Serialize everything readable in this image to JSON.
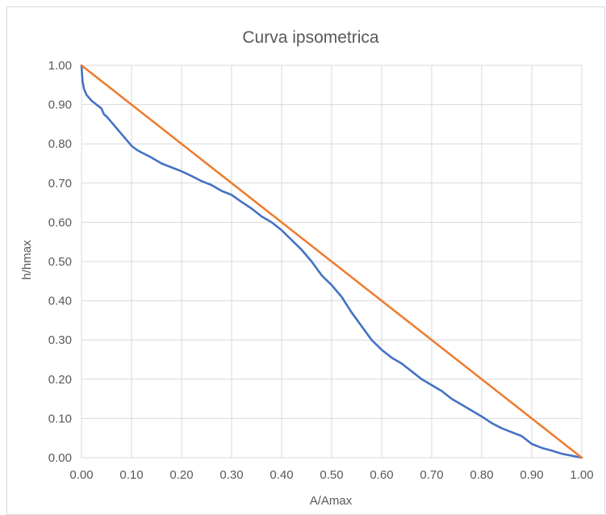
{
  "chart_data": {
    "type": "line",
    "title": "Curva ipsometrica",
    "xlabel": "A/Amax",
    "ylabel": "h/hmax",
    "xlim": [
      0,
      1
    ],
    "ylim": [
      0,
      1
    ],
    "x_ticks": [
      "0.00",
      "0.10",
      "0.20",
      "0.30",
      "0.40",
      "0.50",
      "0.60",
      "0.70",
      "0.80",
      "0.90",
      "1.00"
    ],
    "y_ticks": [
      "0.00",
      "0.10",
      "0.20",
      "0.30",
      "0.40",
      "0.50",
      "0.60",
      "0.70",
      "0.80",
      "0.90",
      "1.00"
    ],
    "grid": true,
    "legend": "none",
    "series": [
      {
        "color": "#4472c4",
        "x": [
          0.0,
          0.002,
          0.005,
          0.01,
          0.02,
          0.03,
          0.04,
          0.045,
          0.05,
          0.06,
          0.07,
          0.08,
          0.09,
          0.1,
          0.11,
          0.12,
          0.14,
          0.16,
          0.18,
          0.2,
          0.22,
          0.24,
          0.26,
          0.28,
          0.3,
          0.32,
          0.34,
          0.36,
          0.38,
          0.4,
          0.42,
          0.44,
          0.46,
          0.48,
          0.5,
          0.52,
          0.54,
          0.56,
          0.58,
          0.6,
          0.62,
          0.64,
          0.66,
          0.68,
          0.7,
          0.72,
          0.74,
          0.76,
          0.78,
          0.8,
          0.82,
          0.84,
          0.86,
          0.88,
          0.9,
          0.92,
          0.94,
          0.96,
          0.98,
          1.0
        ],
        "y": [
          1.0,
          0.96,
          0.94,
          0.925,
          0.91,
          0.9,
          0.89,
          0.875,
          0.87,
          0.855,
          0.84,
          0.825,
          0.81,
          0.795,
          0.785,
          0.778,
          0.765,
          0.75,
          0.74,
          0.73,
          0.718,
          0.705,
          0.695,
          0.68,
          0.67,
          0.652,
          0.635,
          0.615,
          0.6,
          0.58,
          0.555,
          0.53,
          0.5,
          0.465,
          0.44,
          0.41,
          0.37,
          0.335,
          0.3,
          0.275,
          0.255,
          0.24,
          0.22,
          0.2,
          0.185,
          0.17,
          0.15,
          0.135,
          0.12,
          0.105,
          0.088,
          0.075,
          0.065,
          0.055,
          0.035,
          0.025,
          0.018,
          0.01,
          0.005,
          0.0
        ]
      },
      {
        "color": "#ed7d31",
        "x": [
          0.0,
          1.0
        ],
        "y": [
          1.0,
          0.0
        ]
      }
    ]
  }
}
